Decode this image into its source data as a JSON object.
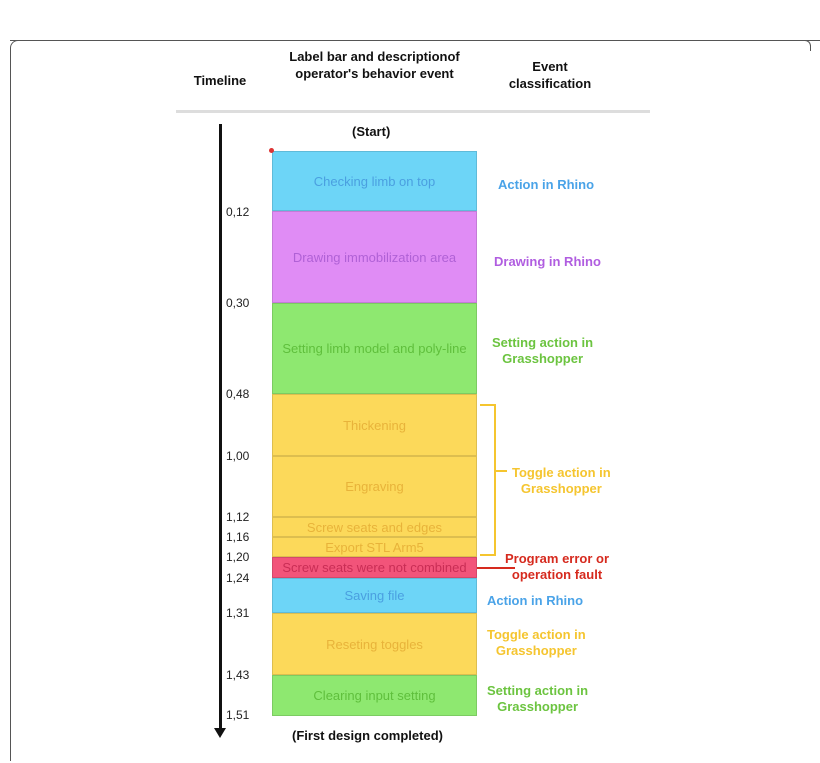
{
  "header": {
    "timeline": "Timeline",
    "label_bar": "Label bar and description of operator's behavior event",
    "label_bar_line1": "Label bar and descriptionof",
    "label_bar_line2": "operator's behavior event",
    "classification_line1": "Event",
    "classification_line2": "classification"
  },
  "start_label": "(Start)",
  "end_label": "(First design completed)",
  "ticks": [
    "0,12",
    "0,30",
    "0,48",
    "1,00",
    "1,12",
    "1,16",
    "1,20",
    "1,24",
    "1,31",
    "1,43",
    "1,51"
  ],
  "segments": [
    {
      "label": "Checking limb on top",
      "color": "#6dd5f7",
      "text_color": "#4a9fe0"
    },
    {
      "label": "Drawing immobilization area",
      "color": "#e08cf5",
      "text_color": "#b061d6"
    },
    {
      "label": "Setting limb model and poly-line",
      "color": "#8ee870",
      "text_color": "#5fbf3c"
    },
    {
      "label": "Thickening",
      "color": "#fcd95a",
      "text_color": "#e8b33a"
    },
    {
      "label": "Engraving",
      "color": "#fcd95a",
      "text_color": "#e8b33a"
    },
    {
      "label": "Screw seats and edges",
      "color": "#fcd95a",
      "text_color": "#e8b33a"
    },
    {
      "label": "Export STL Arm5",
      "color": "#fcd95a",
      "text_color": "#e8b33a"
    },
    {
      "label": "Screw seats were not combined",
      "color": "#f2547a",
      "text_color": "#c92d55"
    },
    {
      "label": "Saving file",
      "color": "#6dd5f7",
      "text_color": "#4a9fe0"
    },
    {
      "label": "Reseting toggles",
      "color": "#fcd95a",
      "text_color": "#e8b33a"
    },
    {
      "label": "Clearing input setting",
      "color": "#8ee870",
      "text_color": "#5fbf3c"
    }
  ],
  "classes": [
    {
      "line1": "Action in Rhino",
      "line2": "",
      "color": "#4aa3e8"
    },
    {
      "line1": "Drawing in Rhino",
      "line2": "",
      "color": "#b05de0"
    },
    {
      "line1": "Setting action in",
      "line2": "Grasshopper",
      "color": "#6cc440"
    },
    {
      "line1": "Toggle action in",
      "line2": "Grasshopper",
      "color": "#f5c52f"
    },
    {
      "line1": "Program error or",
      "line2": "operation fault",
      "color": "#d62a1e"
    },
    {
      "line1": "Action in Rhino",
      "line2": "",
      "color": "#4aa3e8"
    },
    {
      "line1": "Toggle action in",
      "line2": "Grasshopper",
      "color": "#f5c52f"
    },
    {
      "line1": "Setting action in",
      "line2": "Grasshopper",
      "color": "#6cc440"
    }
  ]
}
